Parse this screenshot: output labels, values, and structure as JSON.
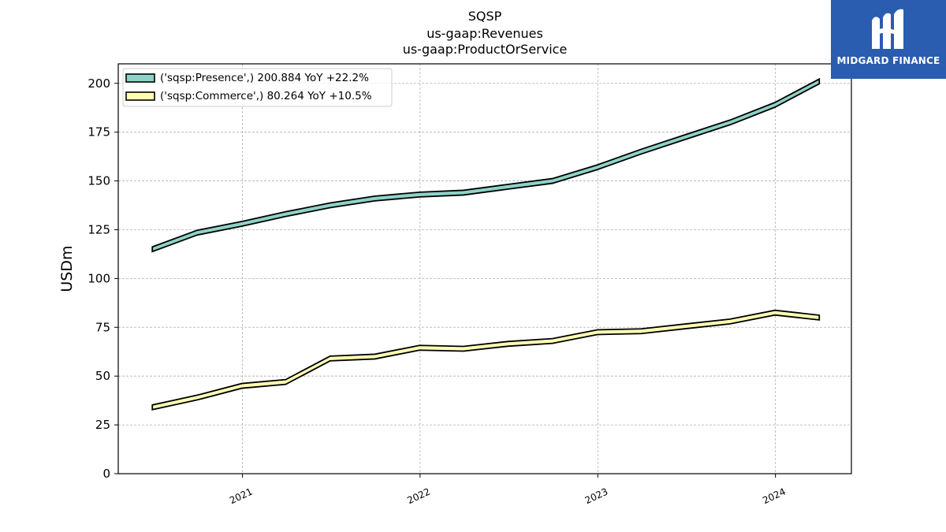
{
  "logo": {
    "text": "MIDGARD FINANCE",
    "icon": "midgard-m-logo-icon",
    "background": "#2a5cb0"
  },
  "chart_data": {
    "type": "line",
    "title": [
      "SQSP",
      "us-gaap:Revenues",
      "us-gaap:ProductOrService"
    ],
    "xlabel": "",
    "ylabel": "USDm",
    "ylim": [
      0,
      210
    ],
    "yticks": [
      0,
      25,
      50,
      75,
      100,
      125,
      150,
      175,
      200
    ],
    "xticks": [
      "2021",
      "2022",
      "2023",
      "2024"
    ],
    "grid": true,
    "legend_position": "top-left",
    "series": [
      {
        "name": "('sqsp:Presence',) 200.884 YoY +22.2%",
        "color": "#8dd3c7",
        "points": [
          [
            "2020-06-30",
            115.0
          ],
          [
            "2020-09-30",
            123.5
          ],
          [
            "2020-12-31",
            128.0
          ],
          [
            "2021-03-31",
            133.0
          ],
          [
            "2021-06-30",
            137.5
          ],
          [
            "2021-09-30",
            141.0
          ],
          [
            "2021-12-31",
            143.0
          ],
          [
            "2022-03-31",
            144.0
          ],
          [
            "2022-06-30",
            147.0
          ],
          [
            "2022-09-30",
            150.0
          ],
          [
            "2022-12-31",
            157.0
          ],
          [
            "2023-03-31",
            165.0
          ],
          [
            "2023-06-30",
            172.5
          ],
          [
            "2023-09-30",
            180.0
          ],
          [
            "2023-12-31",
            189.0
          ],
          [
            "2024-03-31",
            201.0
          ]
        ]
      },
      {
        "name": "('sqsp:Commerce',) 80.264 YoY +10.5%",
        "color": "#ffffb3",
        "points": [
          [
            "2020-06-30",
            34.0
          ],
          [
            "2020-09-30",
            39.0
          ],
          [
            "2020-12-31",
            45.0
          ],
          [
            "2021-03-31",
            47.0
          ],
          [
            "2021-06-30",
            59.0
          ],
          [
            "2021-09-30",
            60.0
          ],
          [
            "2021-12-31",
            64.5
          ],
          [
            "2022-03-31",
            64.0
          ],
          [
            "2022-06-30",
            66.5
          ],
          [
            "2022-09-30",
            68.0
          ],
          [
            "2022-12-31",
            72.5
          ],
          [
            "2023-03-31",
            73.0
          ],
          [
            "2023-06-30",
            75.5
          ],
          [
            "2023-09-30",
            78.0
          ],
          [
            "2023-12-31",
            82.5
          ],
          [
            "2024-03-31",
            80.0
          ]
        ]
      }
    ]
  }
}
